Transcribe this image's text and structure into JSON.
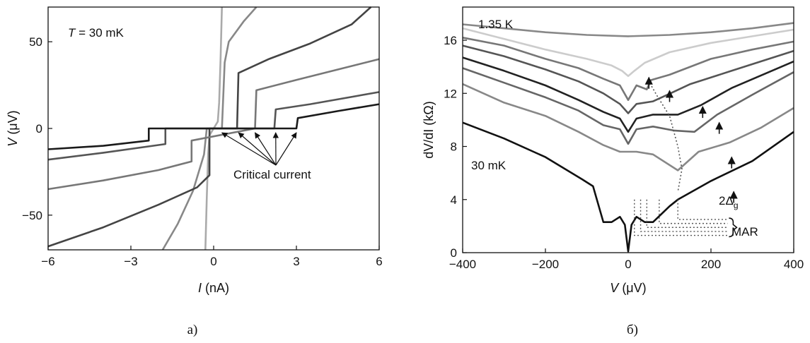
{
  "chart_data": [
    {
      "type": "line",
      "panel_caption": "a)",
      "xlabel_var": "I",
      "xlabel_unit": " (nA)",
      "ylabel_var": "V",
      "ylabel_unit": " (μV)",
      "xlim": [
        -6,
        6
      ],
      "ylim": [
        -70,
        70
      ],
      "xticks": [
        -6,
        -3,
        0,
        3,
        6
      ],
      "xtick_labels": [
        "−6",
        "−3",
        "0",
        "3",
        "6"
      ],
      "yticks": [
        -50,
        0,
        50
      ],
      "ytick_labels": [
        "−50",
        "0",
        "50"
      ],
      "annotation_temp_var": "T",
      "annotation_temp_rest": " = 30 mK",
      "annotation_critical": "Critical current",
      "critical_arrow_targets": [
        0.3,
        0.9,
        1.5,
        2.25,
        3.0
      ],
      "series": [
        {
          "color": "#aaaaaa",
          "points": [
            [
              -0.3,
              -70
            ],
            [
              -0.25,
              -40
            ],
            [
              -0.2,
              -15
            ],
            [
              -0.15,
              -4
            ],
            [
              0,
              0
            ],
            [
              0.15,
              4
            ],
            [
              0.2,
              15
            ],
            [
              0.25,
              40
            ],
            [
              0.3,
              70
            ]
          ]
        },
        {
          "color": "#888888",
          "points": [
            [
              -1.85,
              -70
            ],
            [
              -1.3,
              -55
            ],
            [
              -0.75,
              -36
            ],
            [
              -0.35,
              -15
            ],
            [
              -0.25,
              0
            ],
            [
              0.3,
              0
            ],
            [
              0.4,
              38
            ],
            [
              0.55,
              50
            ],
            [
              1.1,
              62
            ],
            [
              1.55,
              70
            ]
          ]
        },
        {
          "color": "#444444",
          "points": [
            [
              -6,
              -68
            ],
            [
              -4,
              -57
            ],
            [
              -2,
              -44
            ],
            [
              -0.6,
              -34
            ],
            [
              -0.15,
              -27
            ],
            [
              -0.15,
              0
            ],
            [
              0.85,
              0
            ],
            [
              0.9,
              32
            ],
            [
              2,
              40
            ],
            [
              3.5,
              49
            ],
            [
              5,
              60
            ],
            [
              5.7,
              70
            ]
          ]
        },
        {
          "color": "#777777",
          "points": [
            [
              -6,
              -35
            ],
            [
              -4,
              -30
            ],
            [
              -2,
              -24
            ],
            [
              -0.8,
              -19
            ],
            [
              -0.8,
              -7
            ],
            [
              1.5,
              0
            ],
            [
              1.55,
              22
            ],
            [
              3,
              28
            ],
            [
              4.5,
              34
            ],
            [
              6,
              40
            ]
          ]
        },
        {
          "color": "#555555",
          "points": [
            [
              -6,
              -18
            ],
            [
              -4,
              -14
            ],
            [
              -1.75,
              -9
            ],
            [
              -1.75,
              0
            ],
            [
              2.2,
              0
            ],
            [
              2.25,
              11
            ],
            [
              3.5,
              14
            ],
            [
              6,
              21
            ]
          ]
        },
        {
          "color": "#1a1a1a",
          "points": [
            [
              -6,
              -12
            ],
            [
              -4,
              -10
            ],
            [
              -2.35,
              -7
            ],
            [
              -2.35,
              0
            ],
            [
              3.0,
              0
            ],
            [
              3.05,
              6
            ],
            [
              4.5,
              10
            ],
            [
              6,
              14
            ]
          ]
        }
      ]
    },
    {
      "type": "line",
      "panel_caption": "б)",
      "xlabel_var": "V",
      "xlabel_unit": " (μV)",
      "ylabel_var": "dV/dI",
      "ylabel_unit": " (kΩ)",
      "xlim": [
        -400,
        400
      ],
      "ylim": [
        0,
        18.5
      ],
      "xticks": [
        -400,
        -200,
        0,
        200,
        400
      ],
      "xtick_labels": [
        "−400",
        "−200",
        "0",
        "200",
        "400"
      ],
      "yticks": [
        0,
        4,
        8,
        12,
        16
      ],
      "ytick_labels": [
        "0",
        "4",
        "8",
        "12",
        "16"
      ],
      "annotation_top": "1.35 K",
      "annotation_bottom": "30 mK",
      "annotation_gap": "2Δ",
      "annotation_gap_sub": "g",
      "annotation_mar": "MAR",
      "gap_arrows": [
        [
          50,
          13.2
        ],
        [
          100,
          12.2
        ],
        [
          180,
          11.0
        ],
        [
          220,
          9.8
        ],
        [
          250,
          7.2
        ],
        [
          255,
          4.6
        ]
      ],
      "dotted_gap_line": [
        [
          48,
          13.0
        ],
        [
          70,
          11.8
        ],
        [
          100,
          10.3
        ],
        [
          120,
          8.0
        ],
        [
          130,
          6.3
        ],
        [
          120,
          4.6
        ]
      ],
      "mar_dips": [
        [
          120,
          2.5
        ],
        [
          75,
          2.2
        ],
        [
          45,
          1.9
        ],
        [
          30,
          1.6
        ],
        [
          15,
          1.3
        ]
      ],
      "mar_brace_x": 240,
      "series": [
        {
          "color": "#888888",
          "points": [
            [
              -400,
              17.2
            ],
            [
              -300,
              16.9
            ],
            [
              -200,
              16.6
            ],
            [
              -100,
              16.4
            ],
            [
              0,
              16.3
            ],
            [
              100,
              16.4
            ],
            [
              200,
              16.6
            ],
            [
              300,
              16.9
            ],
            [
              400,
              17.3
            ]
          ]
        },
        {
          "color": "#cccccc",
          "points": [
            [
              -400,
              16.9
            ],
            [
              -300,
              16.1
            ],
            [
              -200,
              15.3
            ],
            [
              -100,
              14.6
            ],
            [
              -40,
              14.1
            ],
            [
              -15,
              13.7
            ],
            [
              0,
              13.3
            ],
            [
              15,
              13.7
            ],
            [
              40,
              14.3
            ],
            [
              100,
              15.1
            ],
            [
              200,
              15.8
            ],
            [
              300,
              16.3
            ],
            [
              400,
              16.8
            ]
          ]
        },
        {
          "color": "#777777",
          "points": [
            [
              -400,
              16.2
            ],
            [
              -300,
              15.6
            ],
            [
              -200,
              14.6
            ],
            [
              -120,
              13.9
            ],
            [
              -60,
              13.1
            ],
            [
              -20,
              12.6
            ],
            [
              0,
              11.5
            ],
            [
              20,
              12.6
            ],
            [
              45,
              12.3
            ],
            [
              55,
              13.0
            ],
            [
              100,
              13.4
            ],
            [
              200,
              14.6
            ],
            [
              300,
              15.3
            ],
            [
              400,
              15.9
            ]
          ]
        },
        {
          "color": "#555555",
          "points": [
            [
              -400,
              15.6
            ],
            [
              -300,
              14.8
            ],
            [
              -200,
              13.8
            ],
            [
              -120,
              12.9
            ],
            [
              -60,
              12.0
            ],
            [
              -20,
              11.2
            ],
            [
              0,
              10.5
            ],
            [
              20,
              11.2
            ],
            [
              60,
              11.4
            ],
            [
              95,
              11.9
            ],
            [
              150,
              12.7
            ],
            [
              250,
              13.7
            ],
            [
              400,
              15.2
            ]
          ]
        },
        {
          "color": "#222222",
          "points": [
            [
              -400,
              14.7
            ],
            [
              -300,
              13.7
            ],
            [
              -200,
              12.6
            ],
            [
              -120,
              11.5
            ],
            [
              -60,
              10.6
            ],
            [
              -20,
              10.1
            ],
            [
              0,
              9.1
            ],
            [
              20,
              10.1
            ],
            [
              60,
              10.4
            ],
            [
              120,
              10.4
            ],
            [
              175,
              11.1
            ],
            [
              250,
              12.4
            ],
            [
              400,
              14.4
            ]
          ]
        },
        {
          "color": "#666666",
          "points": [
            [
              -400,
              13.9
            ],
            [
              -300,
              12.8
            ],
            [
              -200,
              11.7
            ],
            [
              -120,
              10.7
            ],
            [
              -60,
              9.6
            ],
            [
              -20,
              9.3
            ],
            [
              0,
              8.2
            ],
            [
              20,
              9.3
            ],
            [
              60,
              9.5
            ],
            [
              110,
              9.2
            ],
            [
              160,
              9.1
            ],
            [
              215,
              10.4
            ],
            [
              300,
              11.9
            ],
            [
              400,
              13.6
            ]
          ]
        },
        {
          "color": "#888888",
          "points": [
            [
              -400,
              12.7
            ],
            [
              -300,
              11.3
            ],
            [
              -200,
              10.3
            ],
            [
              -120,
              9.1
            ],
            [
              -60,
              8.1
            ],
            [
              -20,
              7.6
            ],
            [
              0,
              7.6
            ],
            [
              20,
              7.6
            ],
            [
              60,
              7.4
            ],
            [
              120,
              6.2
            ],
            [
              170,
              7.6
            ],
            [
              245,
              8.3
            ],
            [
              320,
              9.4
            ],
            [
              400,
              10.9
            ]
          ]
        },
        {
          "color": "#111111",
          "points": [
            [
              -400,
              9.8
            ],
            [
              -300,
              8.6
            ],
            [
              -200,
              7.2
            ],
            [
              -110,
              5.5
            ],
            [
              -85,
              5.0
            ],
            [
              -60,
              2.3
            ],
            [
              -40,
              2.3
            ],
            [
              -20,
              2.7
            ],
            [
              -8,
              2.1
            ],
            [
              0,
              0.1
            ],
            [
              8,
              2.1
            ],
            [
              20,
              2.7
            ],
            [
              40,
              2.3
            ],
            [
              60,
              2.3
            ],
            [
              100,
              3.5
            ],
            [
              120,
              4.0
            ],
            [
              200,
              5.4
            ],
            [
              300,
              6.9
            ],
            [
              400,
              9.1
            ]
          ]
        }
      ]
    }
  ]
}
